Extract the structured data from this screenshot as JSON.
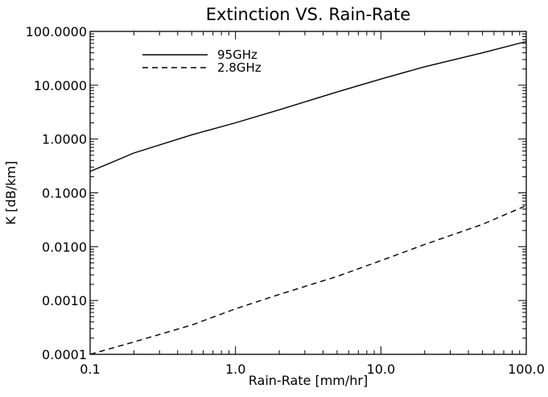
{
  "chart_data": {
    "type": "line",
    "title": "Extinction VS. Rain-Rate",
    "xlabel": "Rain-Rate [mm/hr]",
    "ylabel": "K [dB/km]",
    "xscale": "log",
    "yscale": "log",
    "xlim": [
      0.1,
      100
    ],
    "ylim": [
      0.0001,
      100
    ],
    "x_ticks": [
      {
        "value": 0.1,
        "label": "0.1"
      },
      {
        "value": 1,
        "label": "1.0"
      },
      {
        "value": 10,
        "label": "10.0"
      },
      {
        "value": 100,
        "label": "100.0"
      }
    ],
    "y_ticks": [
      {
        "value": 0.0001,
        "label": "0.0001"
      },
      {
        "value": 0.001,
        "label": "0.0010"
      },
      {
        "value": 0.01,
        "label": "0.0100"
      },
      {
        "value": 0.1,
        "label": "0.1000"
      },
      {
        "value": 1,
        "label": "1.0000"
      },
      {
        "value": 10,
        "label": "10.0000"
      },
      {
        "value": 100,
        "label": "100.0000"
      }
    ],
    "grid": false,
    "legend": "top-left",
    "series": [
      {
        "name": "95GHz",
        "style": "solid",
        "color": "#000000",
        "x": [
          0.1,
          0.2,
          0.5,
          1,
          2,
          5,
          10,
          20,
          50,
          100
        ],
        "y": [
          0.25,
          0.55,
          1.2,
          2.0,
          3.5,
          7.5,
          13,
          22,
          40,
          65
        ]
      },
      {
        "name": "2.8GHz",
        "style": "dashed",
        "color": "#000000",
        "x": [
          0.1,
          0.2,
          0.5,
          1,
          2,
          5,
          10,
          20,
          50,
          100
        ],
        "y": [
          0.0001,
          0.00017,
          0.00035,
          0.0007,
          0.0013,
          0.0028,
          0.0055,
          0.011,
          0.026,
          0.058
        ]
      }
    ]
  }
}
